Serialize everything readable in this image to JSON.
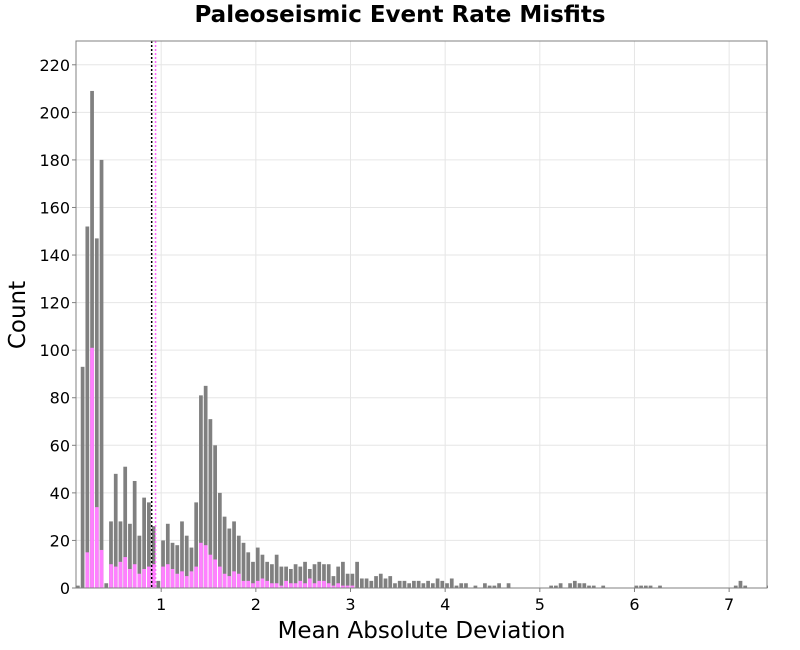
{
  "chart_data": {
    "type": "bar",
    "title": "Paleoseismic Event Rate Misfits",
    "xlabel": "Mean Absolute Deviation",
    "ylabel": "Count",
    "xlim": [
      0.1,
      7.4
    ],
    "ylim": [
      0,
      230
    ],
    "bin_width": 0.05,
    "xticks": [
      1,
      2,
      3,
      4,
      5,
      6,
      7
    ],
    "yticks": [
      0,
      20,
      40,
      60,
      80,
      100,
      120,
      140,
      160,
      180,
      200,
      220
    ],
    "grid": true,
    "colors": {
      "all": "#808080",
      "highlight": "#ff80ff",
      "vline_a": "#000000",
      "vline_b": "#ff66ff"
    },
    "vlines": [
      0.91,
      0.93
    ],
    "series": [
      {
        "x_start": [
          0.1,
          0.15,
          0.2,
          0.25,
          0.3,
          0.35,
          0.4,
          0.45,
          0.5,
          0.55,
          0.6,
          0.65,
          0.7,
          0.75,
          0.8,
          0.85,
          0.9,
          0.95,
          1.0,
          1.05,
          1.1,
          1.15,
          1.2,
          1.25,
          1.3,
          1.35,
          1.4,
          1.45,
          1.5,
          1.55,
          1.6,
          1.65,
          1.7,
          1.75,
          1.8,
          1.85,
          1.9,
          1.95,
          2.0,
          2.05,
          2.1,
          2.15,
          2.2,
          2.25,
          2.3,
          2.35,
          2.4,
          2.45,
          2.5,
          2.55,
          2.6,
          2.65,
          2.7,
          2.75,
          2.8,
          2.85,
          2.9,
          2.95,
          3.0,
          3.05,
          3.1,
          3.15,
          3.2,
          3.25,
          3.3,
          3.35,
          3.4,
          3.45,
          3.5,
          3.55,
          3.6,
          3.65,
          3.7,
          3.75,
          3.8,
          3.85,
          3.9,
          3.95,
          4.0,
          4.05,
          4.1,
          4.15,
          4.2,
          4.3,
          4.4,
          4.45,
          4.5,
          4.55,
          4.65,
          5.1,
          5.15,
          5.2,
          5.3,
          5.35,
          5.4,
          5.45,
          5.5,
          5.55,
          5.65,
          6.0,
          6.05,
          6.1,
          6.15,
          6.25,
          7.05,
          7.1,
          7.15,
          7.4
        ],
        "values": [
          1,
          93,
          152,
          209,
          147,
          180,
          2,
          28,
          48,
          28,
          51,
          27,
          45,
          22,
          38,
          36,
          26,
          3,
          20,
          27,
          19,
          18,
          28,
          22,
          17,
          36,
          81,
          85,
          71,
          60,
          40,
          30,
          25,
          28,
          22,
          19,
          15,
          11,
          17,
          14,
          11,
          10,
          14,
          9,
          9,
          8,
          10,
          9,
          11,
          8,
          10,
          11,
          10,
          10,
          5,
          9,
          11,
          6,
          6,
          11,
          4,
          4,
          3,
          5,
          6,
          4,
          5,
          2,
          3,
          3,
          2,
          3,
          3,
          2,
          3,
          2,
          4,
          3,
          2,
          4,
          1,
          2,
          2,
          1,
          2,
          1,
          1,
          2,
          2,
          1,
          1,
          2,
          2,
          3,
          2,
          2,
          1,
          1,
          1,
          1,
          1,
          1,
          1,
          1,
          1,
          3,
          1,
          1
        ]
      },
      {
        "x_start": [
          0.1,
          0.15,
          0.2,
          0.25,
          0.3,
          0.35,
          0.4,
          0.45,
          0.5,
          0.55,
          0.6,
          0.65,
          0.7,
          0.75,
          0.8,
          0.85,
          0.9,
          0.95,
          1.0,
          1.05,
          1.1,
          1.15,
          1.2,
          1.25,
          1.3,
          1.35,
          1.4,
          1.45,
          1.5,
          1.55,
          1.6,
          1.65,
          1.7,
          1.75,
          1.8,
          1.85,
          1.9,
          1.95,
          2.0,
          2.05,
          2.1,
          2.15,
          2.2,
          2.25,
          2.3,
          2.35,
          2.4,
          2.45,
          2.5,
          2.55,
          2.6,
          2.65,
          2.7,
          2.75,
          2.8,
          2.85,
          2.9,
          2.95,
          3.0
        ],
        "values": [
          0,
          0,
          15,
          101,
          34,
          16,
          0,
          10,
          9,
          11,
          13,
          8,
          10,
          6,
          8,
          9,
          10,
          0,
          9,
          10,
          8,
          6,
          7,
          5,
          7,
          9,
          19,
          18,
          14,
          12,
          9,
          6,
          5,
          7,
          6,
          3,
          3,
          2,
          3,
          4,
          3,
          2,
          2,
          1,
          3,
          2,
          2,
          3,
          2,
          4,
          2,
          3,
          3,
          2,
          1,
          2,
          1,
          1,
          1
        ]
      }
    ]
  }
}
